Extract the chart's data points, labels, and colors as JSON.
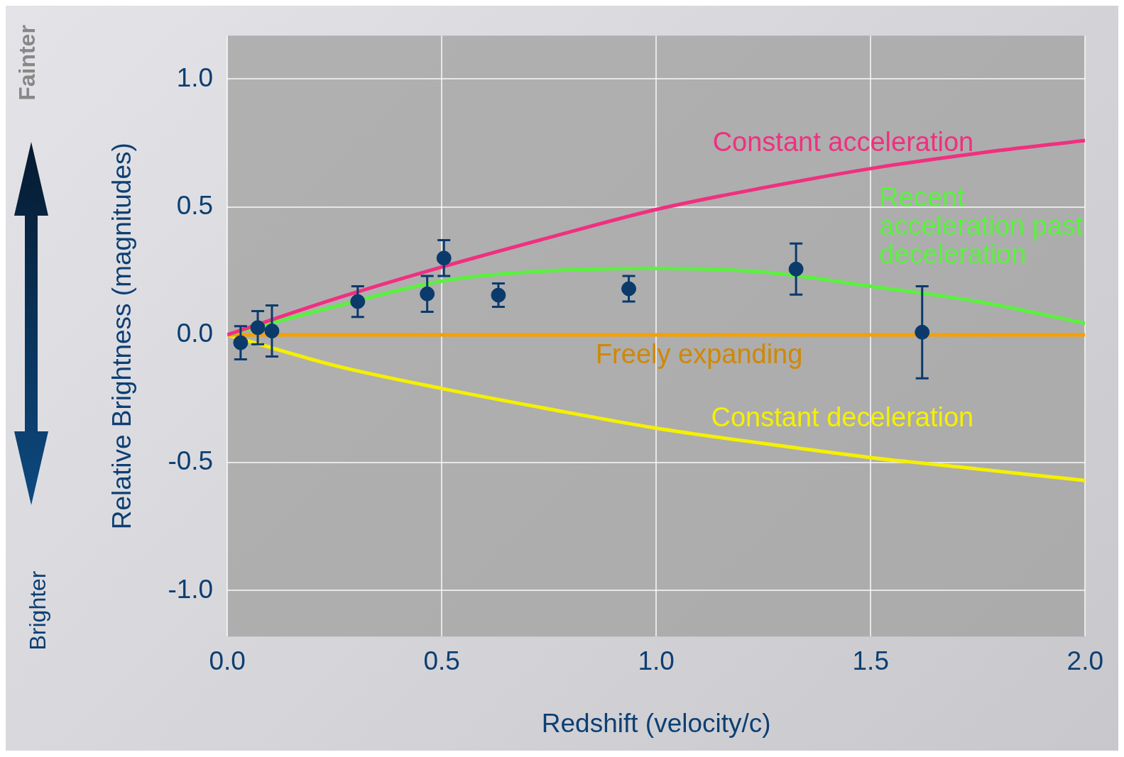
{
  "chart_data": {
    "type": "scatter",
    "xlabel": "Redshift (velocity/c)",
    "ylabel": "Relative Brightness (magnitudes)",
    "xlim": [
      0,
      2
    ],
    "ylim": [
      -1.18,
      1.17
    ],
    "xticks": [
      {
        "value": 0,
        "label": "0.0"
      },
      {
        "value": 0.5,
        "label": "0.5"
      },
      {
        "value": 1,
        "label": "1.0"
      },
      {
        "value": 1.5,
        "label": "1.5"
      },
      {
        "value": 2,
        "label": "2.0"
      }
    ],
    "yticks": [
      {
        "value": -1,
        "label": "-1.0"
      },
      {
        "value": -0.5,
        "label": "-0.5"
      },
      {
        "value": 0,
        "label": "0.0"
      },
      {
        "value": 0.5,
        "label": "0.5"
      },
      {
        "value": 1,
        "label": "1.0"
      }
    ],
    "grid": true,
    "legend": false,
    "marker": "circle",
    "annotations": [
      "Fainter",
      "Brighter"
    ],
    "series": [
      {
        "name": "Constant acceleration",
        "type": "line",
        "marker": "none",
        "color": "#f0307f",
        "x": [
          0,
          0.25,
          0.5,
          0.75,
          1.0,
          1.25,
          1.5,
          1.75,
          2.0
        ],
        "values": [
          0,
          0.14,
          0.265,
          0.38,
          0.49,
          0.575,
          0.65,
          0.71,
          0.76
        ]
      },
      {
        "name": "Recent acceleration past deceleration",
        "type": "line",
        "marker": "none",
        "color": "#5cf040",
        "x": [
          0,
          0.25,
          0.5,
          0.75,
          1.0,
          1.25,
          1.5,
          1.75,
          2.0
        ],
        "values": [
          0,
          0.11,
          0.21,
          0.25,
          0.26,
          0.245,
          0.19,
          0.13,
          0.045
        ]
      },
      {
        "name": "Freely expanding",
        "type": "line",
        "marker": "none",
        "color": "#f5a000",
        "x": [
          0,
          2
        ],
        "values": [
          0,
          0
        ]
      },
      {
        "name": "Constant deceleration",
        "type": "line",
        "marker": "none",
        "color": "#f5f000",
        "x": [
          0,
          0.25,
          0.5,
          0.75,
          1.0,
          1.25,
          1.5,
          1.75,
          2.0
        ],
        "values": [
          0,
          -0.12,
          -0.21,
          -0.29,
          -0.365,
          -0.425,
          -0.48,
          -0.525,
          -0.57
        ]
      },
      {
        "color": "#0b3a6b",
        "x": [
          0.031,
          0.071,
          0.104,
          0.304,
          0.466,
          0.505,
          0.632,
          0.936,
          1.326,
          1.62
        ],
        "values": [
          -0.031,
          0.028,
          0.015,
          0.13,
          0.16,
          0.3,
          0.155,
          0.18,
          0.257,
          0.01
        ],
        "errors": [
          0.065,
          0.065,
          0.1,
          0.06,
          0.07,
          0.07,
          0.046,
          0.05,
          0.1,
          0.18
        ]
      }
    ]
  }
}
